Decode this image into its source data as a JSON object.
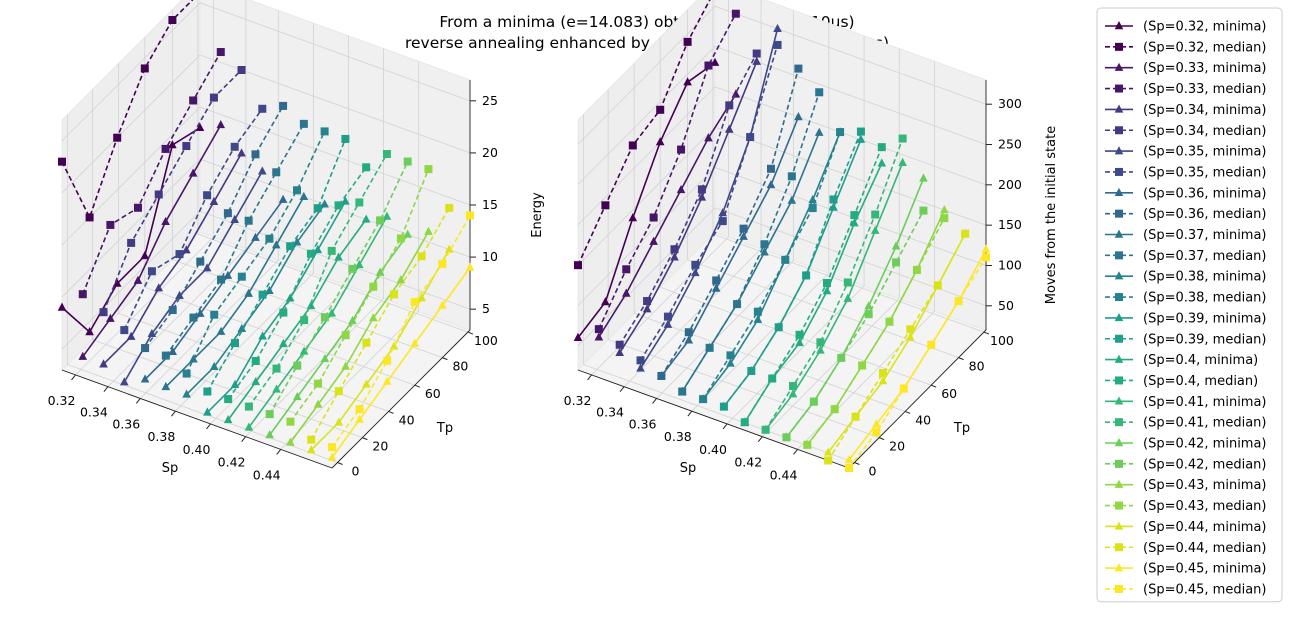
{
  "chart_data": {
    "type": "line3d",
    "title": "From a minima (e=14.083) obtained by FW(Ta=10us)",
    "subtitle": "reverse annealing enhanced by different pauses (Tp|Ta=10us)",
    "colors": [
      "#440154",
      "#481668",
      "#482878",
      "#443983",
      "#3e4989",
      "#375a8c",
      "#31688e",
      "#2b758e",
      "#26828e",
      "#21918c",
      "#1f9e89",
      "#25ab82",
      "#35b779",
      "#4ec36b",
      "#6ccd5a",
      "#8fd744",
      "#b5de2b",
      "#dae319",
      "#fde725"
    ],
    "panels": [
      {
        "xlabel": "Sp",
        "ylabel": "Tp",
        "zlabel": "Energy",
        "x_ticks": [
          "0.32",
          "0.34",
          "0.36",
          "0.38",
          "0.40",
          "0.42",
          "0.44"
        ],
        "y_ticks": [
          "0",
          "20",
          "40",
          "60",
          "80",
          "100"
        ],
        "z_ticks": [
          "5",
          "10",
          "15",
          "20",
          "25"
        ],
        "xlim": [
          0.32,
          0.45
        ],
        "ylim": [
          0,
          100
        ],
        "zlim": [
          3,
          27
        ],
        "tp_values": [
          0,
          20,
          40,
          60,
          80,
          100
        ],
        "series": [
          {
            "name": "(Sp=0.32, minima)",
            "values": [
              9,
              4,
              6,
              6,
              14,
              13
            ]
          },
          {
            "name": "(Sp=0.32, median)",
            "values": [
              23,
              15,
              20,
              24,
              26,
              26
            ]
          },
          {
            "name": "(Sp=0.33, minima)",
            "values": [
              5,
              6,
              7,
              10,
              12,
              14
            ]
          },
          {
            "name": "(Sp=0.33, median)",
            "values": [
              11,
              15,
              14,
              17,
              19,
              21
            ]
          },
          {
            "name": "(Sp=0.34, minima)",
            "values": [
              5,
              5,
              7,
              8,
              10,
              12
            ]
          },
          {
            "name": "(Sp=0.34, median)",
            "values": [
              10,
              14,
              16,
              18,
              20,
              20
            ]
          },
          {
            "name": "(Sp=0.35, minima)",
            "values": [
              4,
              6,
              7,
              7,
              9,
              11
            ]
          },
          {
            "name": "(Sp=0.35, median)",
            "values": [
              9,
              12,
              11,
              14,
              16,
              17
            ]
          },
          {
            "name": "(Sp=0.36, minima)",
            "values": [
              5,
              5,
              6,
              7,
              8,
              9
            ]
          },
          {
            "name": "(Sp=0.36, median)",
            "values": [
              8,
              9,
              11,
              13,
              16,
              18
            ]
          },
          {
            "name": "(Sp=0.37, minima)",
            "values": [
              5,
              5,
              5,
              6,
              8,
              10
            ]
          },
          {
            "name": "(Sp=0.37, median)",
            "values": [
              8,
              9,
              10,
              13,
              15,
              17
            ]
          },
          {
            "name": "(Sp=0.38, minima)",
            "values": [
              5,
              5,
              6,
              7,
              9,
              10
            ]
          },
          {
            "name": "(Sp=0.38, median)",
            "values": [
              7,
              10,
              11,
              12,
              14,
              17
            ]
          },
          {
            "name": "(Sp=0.39, minima)",
            "values": [
              4,
              4,
              6,
              7,
              9,
              11
            ]
          },
          {
            "name": "(Sp=0.39, median)",
            "values": [
              6,
              8,
              10,
              12,
              13,
              17
            ]
          },
          {
            "name": "(Sp=0.4, minima)",
            "values": [
              4,
              5,
              6,
              7,
              9,
              10
            ]
          },
          {
            "name": "(Sp=0.4, median)",
            "values": [
              6,
              7,
              9,
              12,
              14,
              15
            ]
          },
          {
            "name": "(Sp=0.41, minima)",
            "values": [
              4,
              5,
              6,
              7,
              9,
              11
            ]
          },
          {
            "name": "(Sp=0.41, median)",
            "values": [
              6,
              7,
              9,
              13,
              15,
              17
            ]
          },
          {
            "name": "(Sp=0.42, minima)",
            "values": [
              4,
              5,
              6,
              7,
              9,
              10
            ]
          },
          {
            "name": "(Sp=0.42, median)",
            "values": [
              6,
              8,
              10,
              12,
              14,
              17
            ]
          },
          {
            "name": "(Sp=0.43, minima)",
            "values": [
              4,
              5,
              6,
              8,
              9,
              11
            ]
          },
          {
            "name": "(Sp=0.43, median)",
            "values": [
              6,
              7,
              9,
              11,
              13,
              17
            ]
          },
          {
            "name": "(Sp=0.44, minima)",
            "values": [
              4,
              4,
              5,
              6,
              8,
              10
            ]
          },
          {
            "name": "(Sp=0.44, median)",
            "values": [
              5,
              7,
              9,
              11,
              12,
              14
            ]
          },
          {
            "name": "(Sp=0.45, minima)",
            "values": [
              4,
              5,
              6,
              7,
              8,
              9
            ]
          },
          {
            "name": "(Sp=0.45, median)",
            "values": [
              5,
              6,
              8,
              11,
              12,
              14
            ]
          }
        ]
      },
      {
        "xlabel": "Sp",
        "ylabel": "Tp",
        "zlabel": "Moves from the initial state",
        "x_ticks": [
          "0.32",
          "0.34",
          "0.36",
          "0.38",
          "0.40",
          "0.42",
          "0.44"
        ],
        "y_ticks": [
          "0",
          "20",
          "40",
          "60",
          "80",
          "100"
        ],
        "z_ticks": [
          "50",
          "100",
          "150",
          "200",
          "250",
          "300"
        ],
        "xlim": [
          0.32,
          0.45
        ],
        "ylim": [
          0,
          100
        ],
        "zlim": [
          20,
          330
        ],
        "tp_values": [
          0,
          20,
          40,
          60,
          80,
          100
        ],
        "series": [
          {
            "name": "(Sp=0.32, minima)",
            "values": [
              60,
              70,
              140,
              200,
              240,
              230
            ]
          },
          {
            "name": "(Sp=0.32, median)",
            "values": [
              150,
              190,
              230,
              240,
              290,
              320
            ]
          },
          {
            "name": "(Sp=0.33, minima)",
            "values": [
              70,
              90,
              120,
              150,
              180,
              200
            ]
          },
          {
            "name": "(Sp=0.33, median)",
            "values": [
              80,
              120,
              150,
              200,
              270,
              300
            ]
          },
          {
            "name": "(Sp=0.34, minima)",
            "values": [
              60,
              80,
              110,
              150,
              200,
              250
            ]
          },
          {
            "name": "(Sp=0.34, median)",
            "values": [
              70,
              90,
              120,
              160,
              230,
              260
            ]
          },
          {
            "name": "(Sp=0.35, minima)",
            "values": [
              50,
              70,
              100,
              140,
              200,
              300
            ]
          },
          {
            "name": "(Sp=0.35, median)",
            "values": [
              60,
              80,
              110,
              130,
              200,
              280
            ]
          },
          {
            "name": "(Sp=0.36, minima)",
            "values": [
              50,
              60,
              90,
              120,
              150,
              200
            ]
          },
          {
            "name": "(Sp=0.36, median)",
            "values": [
              50,
              70,
              100,
              130,
              170,
              260
            ]
          },
          {
            "name": "(Sp=0.37, minima)",
            "values": [
              40,
              60,
              80,
              110,
              140,
              190
            ]
          },
          {
            "name": "(Sp=0.37, median)",
            "values": [
              40,
              60,
              80,
              120,
              170,
              240
            ]
          },
          {
            "name": "(Sp=0.38, minima)",
            "values": [
              40,
              50,
              70,
              110,
              150,
              200
            ]
          },
          {
            "name": "(Sp=0.38, median)",
            "values": [
              40,
              60,
              80,
              110,
              140,
              200
            ]
          },
          {
            "name": "(Sp=0.39, minima)",
            "values": [
              40,
              50,
              70,
              100,
              150,
              200
            ]
          },
          {
            "name": "(Sp=0.39, median)",
            "values": [
              40,
              50,
              70,
              100,
              160,
              210
            ]
          },
          {
            "name": "(Sp=0.4, minima)",
            "values": [
              30,
              50,
              60,
              90,
              140,
              180
            ]
          },
          {
            "name": "(Sp=0.4, median)",
            "values": [
              30,
              50,
              70,
              100,
              150,
              200
            ]
          },
          {
            "name": "(Sp=0.41, minima)",
            "values": [
              30,
              40,
              60,
              90,
              140,
              190
            ]
          },
          {
            "name": "(Sp=0.41, median)",
            "values": [
              30,
              50,
              70,
              110,
              160,
              220
            ]
          },
          {
            "name": "(Sp=0.42, minima)",
            "values": [
              30,
              40,
              60,
              90,
              130,
              180
            ]
          },
          {
            "name": "(Sp=0.42, median)",
            "values": [
              30,
              40,
              60,
              80,
              110,
              140
            ]
          },
          {
            "name": "(Sp=0.43, minima)",
            "values": [
              30,
              40,
              60,
              80,
              110,
              150
            ]
          },
          {
            "name": "(Sp=0.43, median)",
            "values": [
              30,
              40,
              60,
              80,
              110,
              140
            ]
          },
          {
            "name": "(Sp=0.44, minima)",
            "values": [
              30,
              40,
              50,
              70,
              100,
              130
            ]
          },
          {
            "name": "(Sp=0.44, median)",
            "values": [
              20,
              40,
              60,
              80,
              100,
              130
            ]
          },
          {
            "name": "(Sp=0.45, minima)",
            "values": [
              30,
              40,
              50,
              70,
              90,
              120
            ]
          },
          {
            "name": "(Sp=0.45, median)",
            "values": [
              20,
              30,
              50,
              70,
              90,
              110
            ]
          }
        ]
      }
    ],
    "legend": {
      "placement": "right",
      "entries": [
        "(Sp=0.32, minima)",
        "(Sp=0.32, median)",
        "(Sp=0.33, minima)",
        "(Sp=0.33, median)",
        "(Sp=0.34, minima)",
        "(Sp=0.34, median)",
        "(Sp=0.35, minima)",
        "(Sp=0.35, median)",
        "(Sp=0.36, minima)",
        "(Sp=0.36, median)",
        "(Sp=0.37, minima)",
        "(Sp=0.37, median)",
        "(Sp=0.38, minima)",
        "(Sp=0.38, median)",
        "(Sp=0.39, minima)",
        "(Sp=0.39, median)",
        "(Sp=0.4, minima)",
        "(Sp=0.4, median)",
        "(Sp=0.41, minima)",
        "(Sp=0.41, median)",
        "(Sp=0.42, minima)",
        "(Sp=0.42, median)",
        "(Sp=0.43, minima)",
        "(Sp=0.43, median)",
        "(Sp=0.44, minima)",
        "(Sp=0.44, median)",
        "(Sp=0.45, minima)",
        "(Sp=0.45, median)"
      ]
    },
    "grid": true
  }
}
